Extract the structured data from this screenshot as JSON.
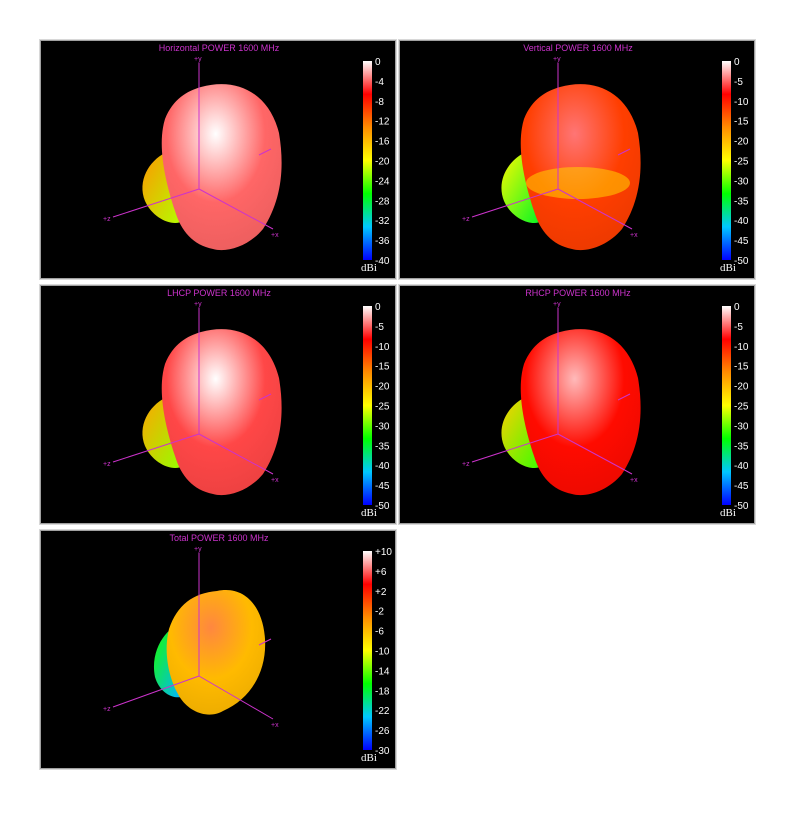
{
  "chart_data": [
    {
      "type": "heatmap",
      "title": "Horizontal POWER 1600  MHz",
      "colorbar": {
        "unit": "dBi",
        "ticks": [
          "0",
          "-4",
          "-8",
          "-12",
          "-16",
          "-20",
          "-24",
          "-28",
          "-32",
          "-36",
          "-40"
        ],
        "range": [
          -40,
          0
        ]
      },
      "axes": {
        "y": "+y",
        "z": "+z",
        "x": "+x"
      },
      "dominant_level_dBi": -4
    },
    {
      "type": "heatmap",
      "title": "Vertical POWER 1600  MHz",
      "colorbar": {
        "unit": "dBi",
        "ticks": [
          "0",
          "-5",
          "-10",
          "-15",
          "-20",
          "-25",
          "-30",
          "-35",
          "-40",
          "-45",
          "-50"
        ],
        "range": [
          -50,
          0
        ]
      },
      "axes": {
        "y": "+y",
        "z": "+z",
        "x": "+x"
      },
      "dominant_level_dBi": -12
    },
    {
      "type": "heatmap",
      "title": "LHCP POWER 1600  MHz",
      "colorbar": {
        "unit": "dBi",
        "ticks": [
          "0",
          "-5",
          "-10",
          "-15",
          "-20",
          "-25",
          "-30",
          "-35",
          "-40",
          "-45",
          "-50"
        ],
        "range": [
          -50,
          0
        ]
      },
      "axes": {
        "y": "+y",
        "z": "+z",
        "x": "+x"
      },
      "dominant_level_dBi": -6
    },
    {
      "type": "heatmap",
      "title": "RHCP POWER 1600  MHz",
      "colorbar": {
        "unit": "dBi",
        "ticks": [
          "0",
          "-5",
          "-10",
          "-15",
          "-20",
          "-25",
          "-30",
          "-35",
          "-40",
          "-45",
          "-50"
        ],
        "range": [
          -50,
          0
        ]
      },
      "axes": {
        "y": "+y",
        "z": "+z",
        "x": "+x"
      },
      "dominant_level_dBi": -9
    },
    {
      "type": "heatmap",
      "title": "Total POWER 1600  MHz",
      "colorbar": {
        "unit": "dBi",
        "ticks": [
          "+10",
          "+6",
          "+2",
          "-2",
          "-6",
          "-10",
          "-14",
          "-18",
          "-22",
          "-26",
          "-30"
        ],
        "range": [
          -30,
          10
        ]
      },
      "axes": {
        "y": "+y",
        "z": "+z",
        "x": "+x"
      },
      "dominant_level_dBi": -6
    }
  ],
  "colors": {
    "title": "#cc33cc",
    "axis": "#cc33cc",
    "panel_bg": "#000000",
    "colormap": [
      "#0000ff",
      "#00c8ff",
      "#00ff00",
      "#ffff00",
      "#ff8c00",
      "#ff0000",
      "#ffffff"
    ]
  }
}
